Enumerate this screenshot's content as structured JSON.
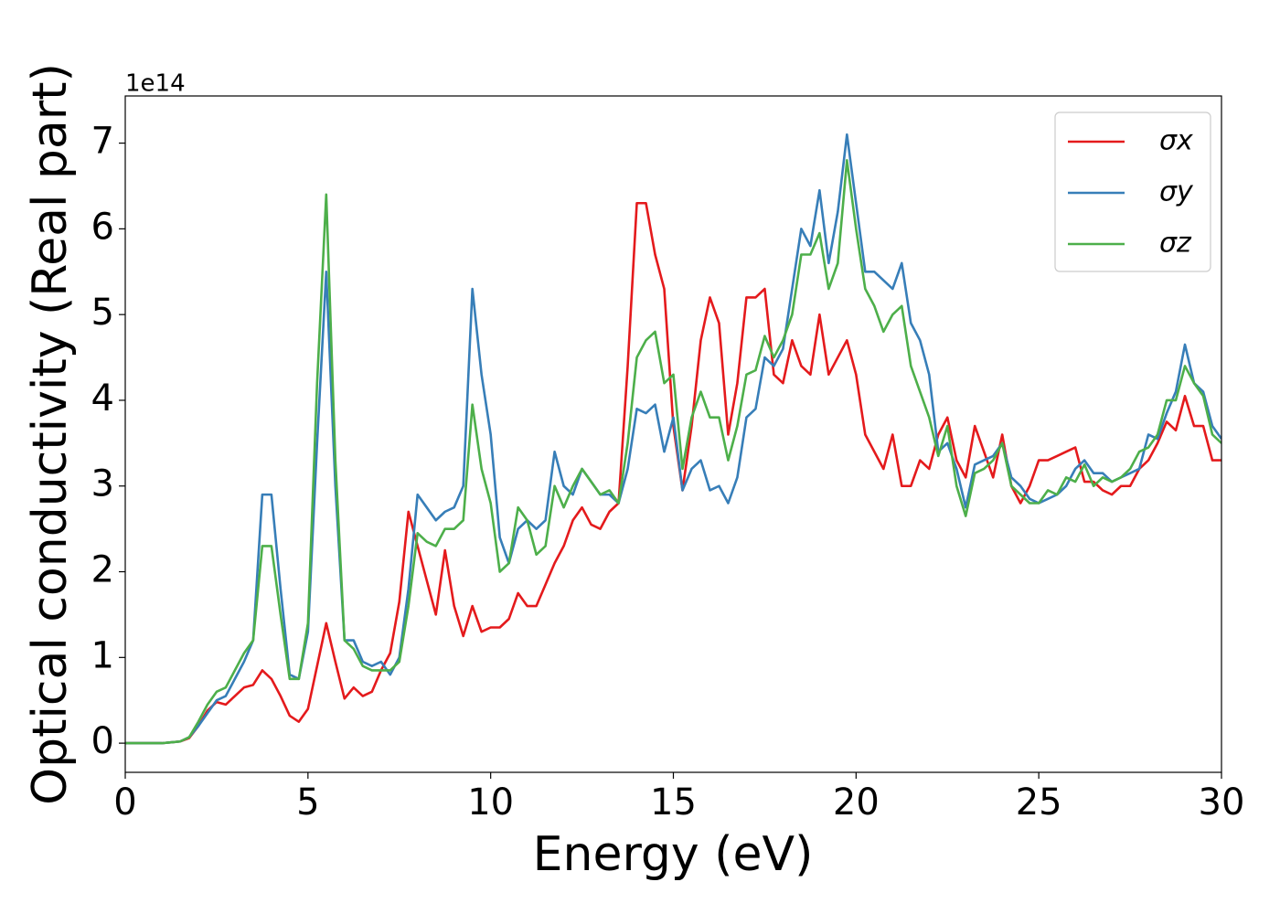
{
  "chart_data": {
    "type": "line",
    "xlabel": "Energy (eV)",
    "ylabel": "Optical conductivity (Real part)",
    "y_offset_label": "1e14",
    "x": [
      0,
      0.25,
      0.5,
      0.75,
      1,
      1.25,
      1.5,
      1.75,
      2,
      2.25,
      2.5,
      2.75,
      3,
      3.25,
      3.5,
      3.75,
      4,
      4.25,
      4.5,
      4.75,
      5,
      5.25,
      5.5,
      5.75,
      6,
      6.25,
      6.5,
      6.75,
      7,
      7.25,
      7.5,
      7.75,
      8,
      8.25,
      8.5,
      8.75,
      9,
      9.25,
      9.5,
      9.75,
      10,
      10.25,
      10.5,
      10.75,
      11,
      11.25,
      11.5,
      11.75,
      12,
      12.25,
      12.5,
      12.75,
      13,
      13.25,
      13.5,
      13.75,
      14,
      14.25,
      14.5,
      14.75,
      15,
      15.25,
      15.5,
      15.75,
      16,
      16.25,
      16.5,
      16.75,
      17,
      17.25,
      17.5,
      17.75,
      18,
      18.25,
      18.5,
      18.75,
      19,
      19.25,
      19.5,
      19.75,
      20,
      20.25,
      20.5,
      20.75,
      21,
      21.25,
      21.5,
      21.75,
      22,
      22.25,
      22.5,
      22.75,
      23,
      23.25,
      23.5,
      23.75,
      24,
      24.25,
      24.5,
      24.75,
      25,
      25.25,
      25.5,
      25.75,
      26,
      26.25,
      26.5,
      26.75,
      27,
      27.25,
      27.5,
      27.75,
      28,
      28.25,
      28.5,
      28.75,
      29,
      29.25,
      29.5,
      29.75,
      30
    ],
    "series": [
      {
        "name": "σx",
        "color": "#e41a1c",
        "values": [
          0,
          0,
          0,
          0,
          0,
          0.01,
          0.02,
          0.06,
          0.2,
          0.38,
          0.48,
          0.45,
          0.55,
          0.65,
          0.68,
          0.85,
          0.75,
          0.55,
          0.32,
          0.25,
          0.4,
          0.9,
          1.4,
          0.95,
          0.52,
          0.65,
          0.55,
          0.6,
          0.85,
          1.05,
          1.65,
          2.7,
          2.3,
          1.9,
          1.5,
          2.25,
          1.6,
          1.25,
          1.6,
          1.3,
          1.35,
          1.35,
          1.45,
          1.75,
          1.6,
          1.6,
          1.85,
          2.1,
          2.3,
          2.6,
          2.75,
          2.55,
          2.5,
          2.7,
          2.8,
          4.4,
          6.3,
          6.3,
          5.7,
          5.3,
          3.7,
          2.95,
          3.7,
          4.7,
          5.2,
          4.9,
          3.6,
          4.2,
          5.2,
          5.2,
          5.3,
          4.3,
          4.2,
          4.7,
          4.4,
          4.3,
          5.0,
          4.3,
          4.5,
          4.7,
          4.3,
          3.6,
          3.4,
          3.2,
          3.6,
          3.0,
          3.0,
          3.3,
          3.2,
          3.6,
          3.8,
          3.3,
          3.1,
          3.7,
          3.4,
          3.1,
          3.6,
          3.0,
          2.8,
          3.0,
          3.3,
          3.3,
          3.35,
          3.4,
          3.45,
          3.05,
          3.05,
          2.95,
          2.9,
          3.0,
          3.0,
          3.2,
          3.3,
          3.5,
          3.75,
          3.65,
          4.05,
          3.7,
          3.7,
          3.3,
          3.3
        ]
      },
      {
        "name": "σy",
        "color": "#377eb8",
        "values": [
          0,
          0,
          0,
          0,
          0,
          0.01,
          0.02,
          0.07,
          0.2,
          0.35,
          0.5,
          0.55,
          0.75,
          0.95,
          1.2,
          2.9,
          2.9,
          1.8,
          0.8,
          0.75,
          1.3,
          3.5,
          5.5,
          3.0,
          1.2,
          1.2,
          0.95,
          0.9,
          0.95,
          0.8,
          1.0,
          1.8,
          2.9,
          2.75,
          2.6,
          2.7,
          2.75,
          3.0,
          5.3,
          4.3,
          3.6,
          2.4,
          2.1,
          2.5,
          2.6,
          2.5,
          2.6,
          3.4,
          3.0,
          2.9,
          3.2,
          3.05,
          2.9,
          2.9,
          2.8,
          3.2,
          3.9,
          3.85,
          3.95,
          3.4,
          3.8,
          2.95,
          3.2,
          3.3,
          2.95,
          3.0,
          2.8,
          3.1,
          3.8,
          3.9,
          4.5,
          4.4,
          4.6,
          5.3,
          6.0,
          5.8,
          6.45,
          5.6,
          6.2,
          7.1,
          6.3,
          5.5,
          5.5,
          5.4,
          5.3,
          5.6,
          4.9,
          4.7,
          4.3,
          3.4,
          3.5,
          3.2,
          2.75,
          3.25,
          3.3,
          3.35,
          3.5,
          3.1,
          3.0,
          2.85,
          2.8,
          2.85,
          2.9,
          3.0,
          3.2,
          3.3,
          3.15,
          3.15,
          3.05,
          3.1,
          3.15,
          3.2,
          3.6,
          3.55,
          3.85,
          4.1,
          4.65,
          4.2,
          4.1,
          3.7,
          3.55
        ]
      },
      {
        "name": "σz",
        "color": "#4daf4a",
        "values": [
          0,
          0,
          0,
          0,
          0,
          0.01,
          0.02,
          0.07,
          0.25,
          0.45,
          0.6,
          0.65,
          0.85,
          1.05,
          1.2,
          2.3,
          2.3,
          1.5,
          0.75,
          0.75,
          1.4,
          4.2,
          6.4,
          3.3,
          1.2,
          1.1,
          0.9,
          0.85,
          0.85,
          0.85,
          0.95,
          1.6,
          2.45,
          2.35,
          2.3,
          2.5,
          2.5,
          2.6,
          3.95,
          3.2,
          2.8,
          2.0,
          2.1,
          2.75,
          2.6,
          2.2,
          2.3,
          3.0,
          2.75,
          3.0,
          3.2,
          3.05,
          2.9,
          2.95,
          2.8,
          3.5,
          4.5,
          4.7,
          4.8,
          4.2,
          4.3,
          3.2,
          3.8,
          4.1,
          3.8,
          3.8,
          3.3,
          3.7,
          4.3,
          4.35,
          4.75,
          4.5,
          4.7,
          5.0,
          5.7,
          5.7,
          5.95,
          5.3,
          5.6,
          6.8,
          6.0,
          5.3,
          5.1,
          4.8,
          5.0,
          5.1,
          4.4,
          4.1,
          3.8,
          3.35,
          3.7,
          3.0,
          2.65,
          3.15,
          3.2,
          3.3,
          3.5,
          3.0,
          2.9,
          2.8,
          2.8,
          2.95,
          2.9,
          3.1,
          3.05,
          3.25,
          3.0,
          3.1,
          3.05,
          3.1,
          3.2,
          3.4,
          3.45,
          3.6,
          4.0,
          4.0,
          4.4,
          4.2,
          4.05,
          3.6,
          3.5
        ]
      }
    ],
    "xlim": [
      0,
      30
    ],
    "xticks": [
      0,
      5,
      10,
      15,
      20,
      25,
      30
    ],
    "ylim": [
      -0.34,
      7.55
    ],
    "yticks": [
      0,
      1,
      2,
      3,
      4,
      5,
      6,
      7
    ],
    "grid": false,
    "legend": "upper right"
  }
}
